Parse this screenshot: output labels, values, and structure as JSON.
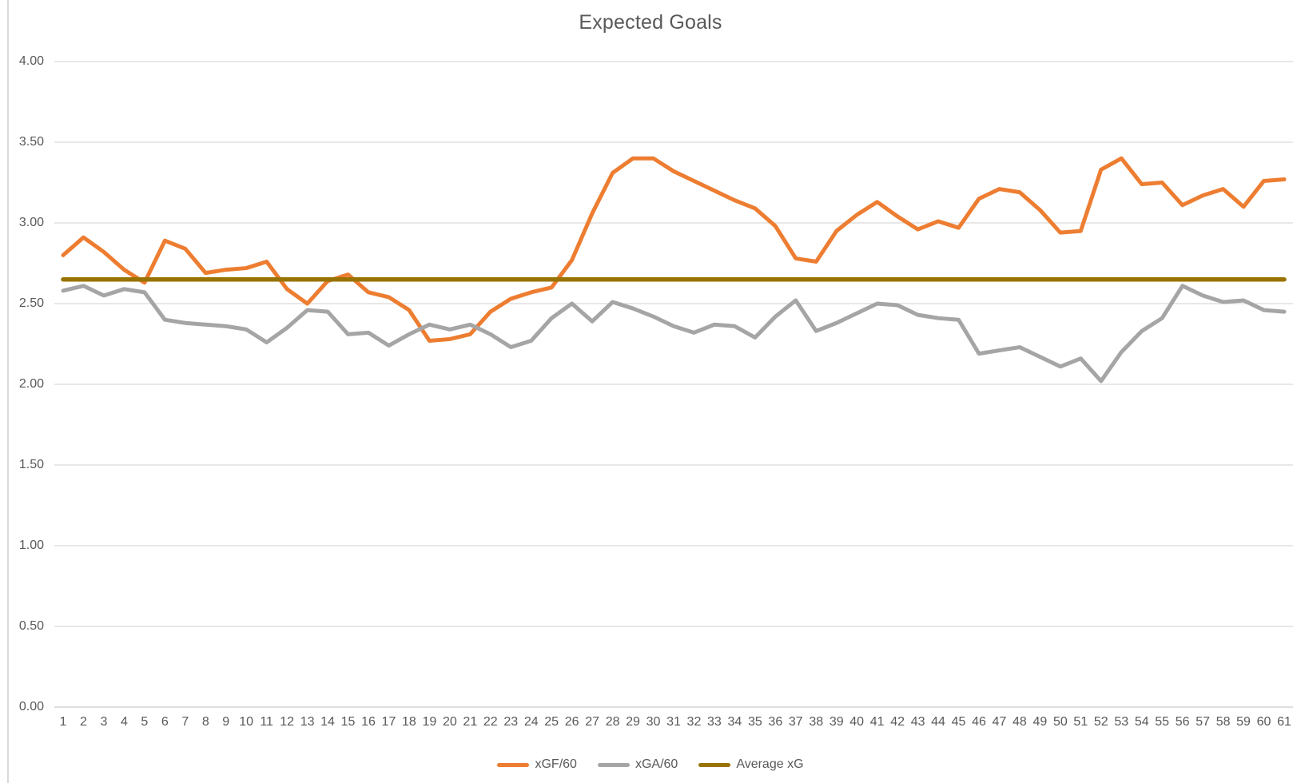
{
  "window": {
    "left_border_color": "#d9d9d9",
    "background": "#ffffff"
  },
  "colors": {
    "title_text": "#595959",
    "axis_text": "#595959",
    "gridline": "#d9d9d9",
    "axis_line": "#cbcbcb",
    "xgf60": "#ED7D31",
    "xga60": "#A5A5A5",
    "average_xg": "#997300"
  },
  "chart": {
    "legend": [
      {
        "label": "xGF/60",
        "color": "#ED7D31"
      },
      {
        "label": "xGA/60",
        "color": "#A5A5A5"
      },
      {
        "label": "Average xG",
        "color": "#997300"
      }
    ]
  },
  "chart_data": {
    "type": "line",
    "title": "Expected Goals",
    "xlabel": "",
    "ylabel": "",
    "ylim": [
      0,
      4
    ],
    "grid": true,
    "legend_position": "bottom",
    "yticks": {
      "values": [
        4.0,
        3.5,
        3.0,
        2.5,
        2.0,
        1.5,
        1.0,
        0.5,
        0.0
      ],
      "labels": [
        "4.00",
        "3.50",
        "3.00",
        "2.50",
        "2.00",
        "1.50",
        "1.00",
        "0.50",
        "0.00"
      ]
    },
    "x": [
      1,
      2,
      3,
      4,
      5,
      6,
      7,
      8,
      9,
      10,
      11,
      12,
      13,
      14,
      15,
      16,
      17,
      18,
      19,
      20,
      21,
      22,
      23,
      24,
      25,
      26,
      27,
      28,
      29,
      30,
      31,
      32,
      33,
      34,
      35,
      36,
      37,
      38,
      39,
      40,
      41,
      42,
      43,
      44,
      45,
      46,
      47,
      48,
      49,
      50,
      51,
      52,
      53,
      54,
      55,
      56,
      57,
      58,
      59,
      60,
      61
    ],
    "series": [
      {
        "name": "xGF/60",
        "color": "#ED7D31",
        "values": [
          2.8,
          2.91,
          2.82,
          2.71,
          2.63,
          2.89,
          2.84,
          2.69,
          2.71,
          2.72,
          2.76,
          2.59,
          2.5,
          2.64,
          2.68,
          2.57,
          2.54,
          2.46,
          2.27,
          2.28,
          2.31,
          2.45,
          2.53,
          2.57,
          2.6,
          2.77,
          3.06,
          3.31,
          3.4,
          3.4,
          3.32,
          3.26,
          3.2,
          3.14,
          3.09,
          2.98,
          2.78,
          2.76,
          2.95,
          3.05,
          3.13,
          3.04,
          2.96,
          3.01,
          2.97,
          3.15,
          3.21,
          3.19,
          3.08,
          2.94,
          2.95,
          3.33,
          3.4,
          3.24,
          3.25,
          3.11,
          3.17,
          3.21,
          3.1,
          3.26,
          3.27
        ]
      },
      {
        "name": "xGA/60",
        "color": "#A5A5A5",
        "values": [
          2.58,
          2.61,
          2.55,
          2.59,
          2.57,
          2.4,
          2.38,
          2.37,
          2.36,
          2.34,
          2.26,
          2.35,
          2.46,
          2.45,
          2.31,
          2.32,
          2.24,
          2.31,
          2.37,
          2.34,
          2.37,
          2.31,
          2.23,
          2.27,
          2.41,
          2.5,
          2.39,
          2.51,
          2.47,
          2.42,
          2.36,
          2.32,
          2.37,
          2.36,
          2.29,
          2.42,
          2.52,
          2.33,
          2.38,
          2.44,
          2.5,
          2.49,
          2.43,
          2.41,
          2.4,
          2.19,
          2.21,
          2.23,
          2.17,
          2.11,
          2.16,
          2.02,
          2.2,
          2.33,
          2.41,
          2.61,
          2.55,
          2.51,
          2.52,
          2.46,
          2.45
        ]
      },
      {
        "name": "Average xG",
        "color": "#997300",
        "constant": 2.65
      }
    ]
  }
}
